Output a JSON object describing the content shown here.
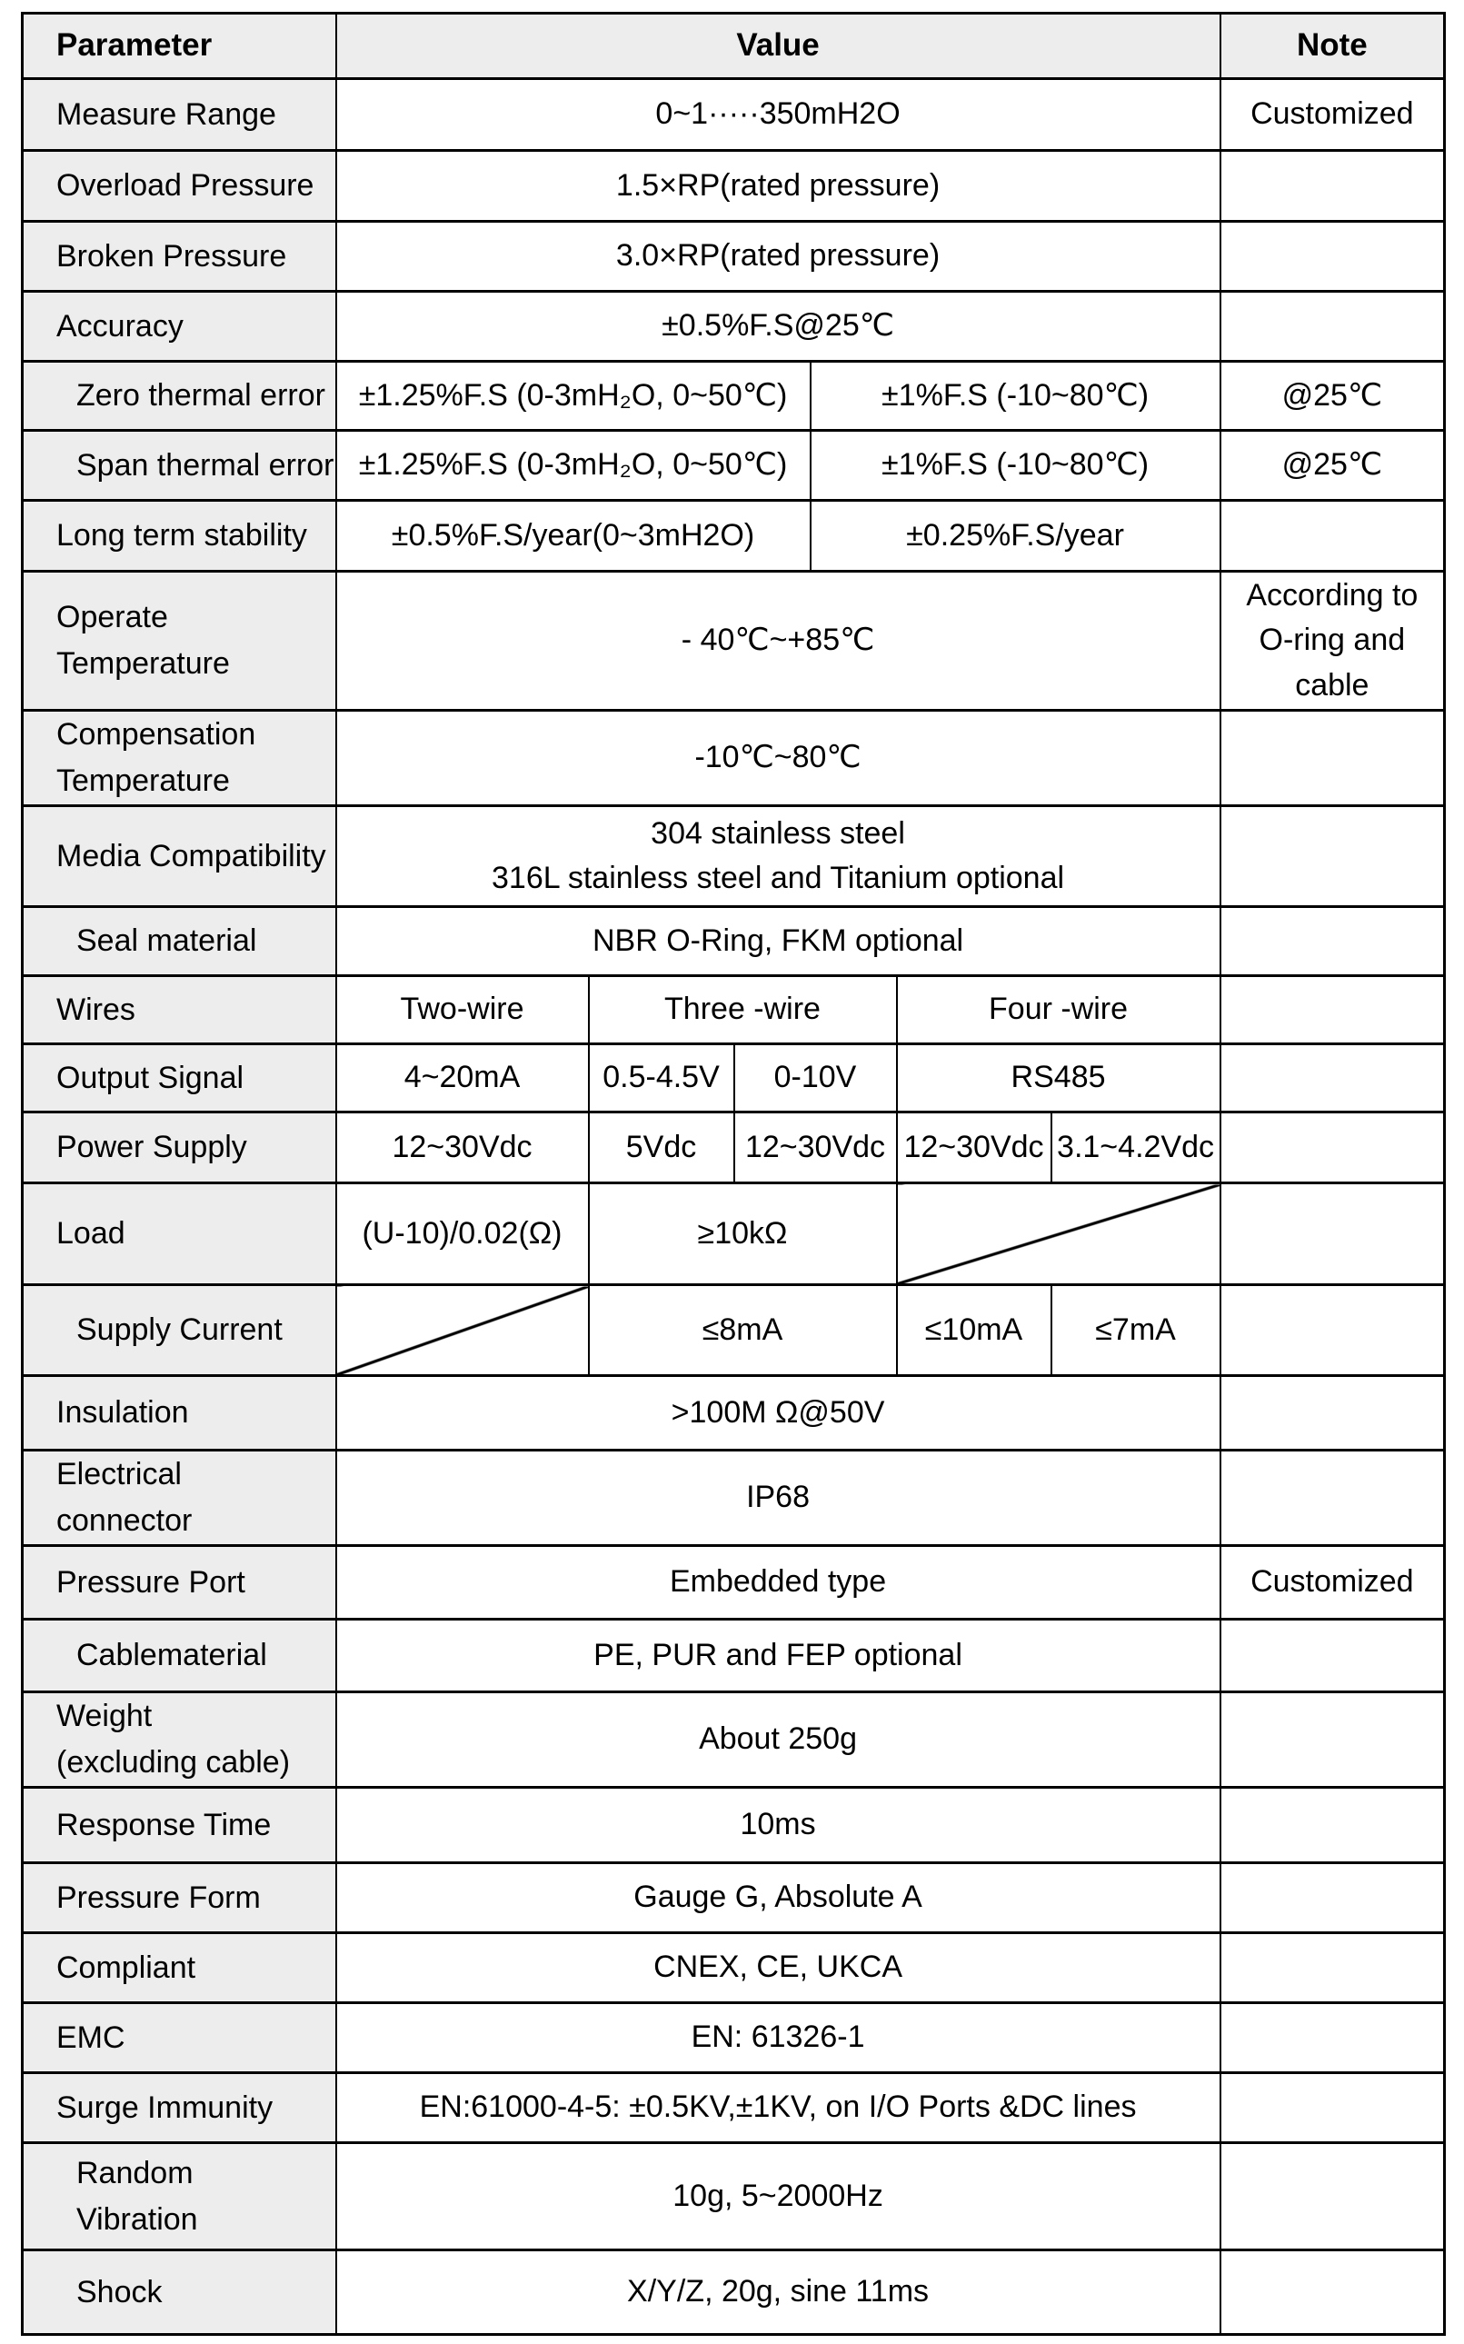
{
  "colors": {
    "header_bg": "#ededed",
    "param_bg": "#ededed",
    "border": "#000000"
  },
  "table": {
    "rows": [
      {
        "h": 72,
        "cells": [
          {
            "t": "Parameter",
            "c": 1,
            "k": "ph"
          },
          {
            "t": "Value",
            "c": 6,
            "k": "vh"
          },
          {
            "t": "Note",
            "c": 1,
            "k": "nh"
          }
        ]
      },
      {
        "h": 79,
        "cells": [
          {
            "t": "Measure Range",
            "c": 1,
            "k": "p"
          },
          {
            "t": "0~1·····350mH2O",
            "c": 6,
            "k": "v"
          },
          {
            "t": "Customized",
            "c": 1,
            "k": "n"
          }
        ]
      },
      {
        "h": 78,
        "cells": [
          {
            "t": "Overload Pressure",
            "c": 1,
            "k": "p"
          },
          {
            "t": "1.5×RP(rated pressure)",
            "c": 6,
            "k": "v"
          },
          {
            "t": "",
            "c": 1,
            "k": "n"
          }
        ]
      },
      {
        "h": 77,
        "cells": [
          {
            "t": "Broken Pressure",
            "c": 1,
            "k": "p"
          },
          {
            "t": "3.0×RP(rated pressure)",
            "c": 6,
            "k": "v"
          },
          {
            "t": "",
            "c": 1,
            "k": "n"
          }
        ]
      },
      {
        "h": 77,
        "cells": [
          {
            "t": "Accuracy",
            "c": 1,
            "k": "p"
          },
          {
            "t": "±0.5%F.S@25℃",
            "c": 6,
            "k": "v"
          },
          {
            "t": "",
            "c": 1,
            "k": "n"
          }
        ]
      },
      {
        "h": 76,
        "cells": [
          {
            "t": "Zero thermal error",
            "c": 1,
            "k": "p",
            "ind": true
          },
          {
            "t": "±1.25%F.S (0-3mH₂O, 0~50℃)",
            "c": 3,
            "k": "v"
          },
          {
            "t": "±1%F.S (-10~80℃)",
            "c": 3,
            "k": "v"
          },
          {
            "t": "@25℃",
            "c": 1,
            "k": "n"
          }
        ]
      },
      {
        "h": 77,
        "cells": [
          {
            "t": "Span thermal error",
            "c": 1,
            "k": "p",
            "ind": true
          },
          {
            "t": "±1.25%F.S (0-3mH₂O, 0~50℃)",
            "c": 3,
            "k": "v"
          },
          {
            "t": "±1%F.S (-10~80℃)",
            "c": 3,
            "k": "v"
          },
          {
            "t": "@25℃",
            "c": 1,
            "k": "n"
          }
        ]
      },
      {
        "h": 78,
        "cells": [
          {
            "t": "Long term stability",
            "c": 1,
            "k": "p"
          },
          {
            "t": "±0.5%F.S/year(0~3mH2O)",
            "c": 3,
            "k": "v"
          },
          {
            "t": "±0.25%F.S/year",
            "c": 3,
            "k": "v"
          },
          {
            "t": "",
            "c": 1,
            "k": "n"
          }
        ]
      },
      {
        "h": 153,
        "cells": [
          {
            "t": "Operate\nTemperature",
            "c": 1,
            "k": "p"
          },
          {
            "t": "- 40℃~+85℃",
            "c": 6,
            "k": "v"
          },
          {
            "t": "According to\nO-ring and\ncable",
            "c": 1,
            "k": "n"
          }
        ]
      },
      {
        "h": 92,
        "cells": [
          {
            "t": "Compensation\nTemperature",
            "c": 1,
            "k": "p"
          },
          {
            "t": "-10℃~80℃",
            "c": 6,
            "k": "v"
          },
          {
            "t": "",
            "c": 1,
            "k": "n"
          }
        ]
      },
      {
        "h": 111,
        "cells": [
          {
            "t": "Media Compatibility",
            "c": 1,
            "k": "p"
          },
          {
            "t": "304 stainless steel\n316L stainless steel and Titanium optional",
            "c": 6,
            "k": "v"
          },
          {
            "t": "",
            "c": 1,
            "k": "n"
          }
        ]
      },
      {
        "h": 76,
        "cells": [
          {
            "t": "Seal material",
            "c": 1,
            "k": "p",
            "ind": true
          },
          {
            "t": "NBR O-Ring, FKM optional",
            "c": 6,
            "k": "v"
          },
          {
            "t": "",
            "c": 1,
            "k": "n"
          }
        ]
      },
      {
        "h": 75,
        "cells": [
          {
            "t": "Wires",
            "c": 1,
            "k": "p"
          },
          {
            "t": "Two-wire",
            "c": 1,
            "k": "v"
          },
          {
            "t": "Three -wire",
            "c": 3,
            "k": "v"
          },
          {
            "t": "Four -wire",
            "c": 2,
            "k": "v"
          },
          {
            "t": "",
            "c": 1,
            "k": "n"
          }
        ]
      },
      {
        "h": 75,
        "cells": [
          {
            "t": "Output Signal",
            "c": 1,
            "k": "p"
          },
          {
            "t": "4~20mA",
            "c": 1,
            "k": "v"
          },
          {
            "t": "0.5-4.5V",
            "c": 1,
            "k": "v"
          },
          {
            "t": "0-10V",
            "c": 2,
            "k": "v"
          },
          {
            "t": "RS485",
            "c": 2,
            "k": "v"
          },
          {
            "t": "",
            "c": 1,
            "k": "n"
          }
        ]
      },
      {
        "h": 78,
        "cells": [
          {
            "t": "Power Supply",
            "c": 1,
            "k": "p"
          },
          {
            "t": "12~30Vdc",
            "c": 1,
            "k": "v"
          },
          {
            "t": "5Vdc",
            "c": 1,
            "k": "v"
          },
          {
            "t": "12~30Vdc",
            "c": 2,
            "k": "v"
          },
          {
            "t": "12~30Vdc",
            "c": 1,
            "k": "v"
          },
          {
            "t": "3.1~4.2Vdc",
            "c": 1,
            "k": "v"
          },
          {
            "t": "",
            "c": 1,
            "k": "n"
          }
        ]
      },
      {
        "h": 112,
        "cells": [
          {
            "t": "Load",
            "c": 1,
            "k": "p"
          },
          {
            "t": "(U-10)/0.02(Ω)",
            "c": 1,
            "k": "v"
          },
          {
            "t": "≥10kΩ",
            "c": 3,
            "k": "v"
          },
          {
            "t": "",
            "c": 2,
            "k": "diag"
          },
          {
            "t": "",
            "c": 1,
            "k": "n"
          }
        ]
      },
      {
        "h": 100,
        "cells": [
          {
            "t": "Supply Current",
            "c": 1,
            "k": "p",
            "ind": true
          },
          {
            "t": "",
            "c": 1,
            "k": "diag"
          },
          {
            "t": "≤8mA",
            "c": 3,
            "k": "v"
          },
          {
            "t": "≤10mA",
            "c": 1,
            "k": "v"
          },
          {
            "t": "≤7mA",
            "c": 1,
            "k": "v"
          },
          {
            "t": "",
            "c": 1,
            "k": "n"
          }
        ]
      },
      {
        "h": 82,
        "cells": [
          {
            "t": "Insulation",
            "c": 1,
            "k": "p"
          },
          {
            "t": ">100M Ω@50V",
            "c": 6,
            "k": "v"
          },
          {
            "t": "",
            "c": 1,
            "k": "n"
          }
        ]
      },
      {
        "h": 95,
        "cells": [
          {
            "t": "Electrical\nconnector",
            "c": 1,
            "k": "p"
          },
          {
            "t": "IP68",
            "c": 6,
            "k": "v"
          },
          {
            "t": "",
            "c": 1,
            "k": "n"
          }
        ]
      },
      {
        "h": 81,
        "cells": [
          {
            "t": "Pressure Port",
            "c": 1,
            "k": "p"
          },
          {
            "t": "Embedded type",
            "c": 6,
            "k": "v"
          },
          {
            "t": "Customized",
            "c": 1,
            "k": "n"
          }
        ]
      },
      {
        "h": 80,
        "cells": [
          {
            "t": "Cablematerial",
            "c": 1,
            "k": "p",
            "ind": true
          },
          {
            "t": "PE, PUR and FEP optional",
            "c": 6,
            "k": "v"
          },
          {
            "t": "",
            "c": 1,
            "k": "n"
          }
        ]
      },
      {
        "h": 94,
        "cells": [
          {
            "t": "Weight\n(excluding cable)",
            "c": 1,
            "k": "p"
          },
          {
            "t": "About 250g",
            "c": 6,
            "k": "v"
          },
          {
            "t": "",
            "c": 1,
            "k": "n"
          }
        ]
      },
      {
        "h": 83,
        "cells": [
          {
            "t": "Response Time",
            "c": 1,
            "k": "p"
          },
          {
            "t": "10ms",
            "c": 6,
            "k": "v"
          },
          {
            "t": "",
            "c": 1,
            "k": "n"
          }
        ]
      },
      {
        "h": 77,
        "cells": [
          {
            "t": "Pressure Form",
            "c": 1,
            "k": "p"
          },
          {
            "t": "Gauge G, Absolute A",
            "c": 6,
            "k": "v"
          },
          {
            "t": "",
            "c": 1,
            "k": "n"
          }
        ]
      },
      {
        "h": 77,
        "cells": [
          {
            "t": "Compliant",
            "c": 1,
            "k": "p"
          },
          {
            "t": "CNEX, CE, UKCA",
            "c": 6,
            "k": "v"
          },
          {
            "t": "",
            "c": 1,
            "k": "n"
          }
        ]
      },
      {
        "h": 77,
        "cells": [
          {
            "t": "EMC",
            "c": 1,
            "k": "p"
          },
          {
            "t": "EN: 61326-1",
            "c": 6,
            "k": "v"
          },
          {
            "t": "",
            "c": 1,
            "k": "n"
          }
        ]
      },
      {
        "h": 77,
        "cells": [
          {
            "t": "Surge Immunity",
            "c": 1,
            "k": "p"
          },
          {
            "t": "EN:61000-4-5: ±0.5KV,±1KV, on I/O Ports &DC lines",
            "c": 6,
            "k": "v"
          },
          {
            "t": "",
            "c": 1,
            "k": "n"
          }
        ]
      },
      {
        "h": 118,
        "cells": [
          {
            "t": "Random\nVibration",
            "c": 1,
            "k": "p",
            "ind": true
          },
          {
            "t": "10g, 5~2000Hz",
            "c": 6,
            "k": "v"
          },
          {
            "t": "",
            "c": 1,
            "k": "n"
          }
        ]
      },
      {
        "h": 93,
        "cells": [
          {
            "t": "Shock",
            "c": 1,
            "k": "p",
            "ind": true
          },
          {
            "t": "X/Y/Z, 20g, sine 11ms",
            "c": 6,
            "k": "v"
          },
          {
            "t": "",
            "c": 1,
            "k": "n"
          }
        ]
      }
    ]
  }
}
